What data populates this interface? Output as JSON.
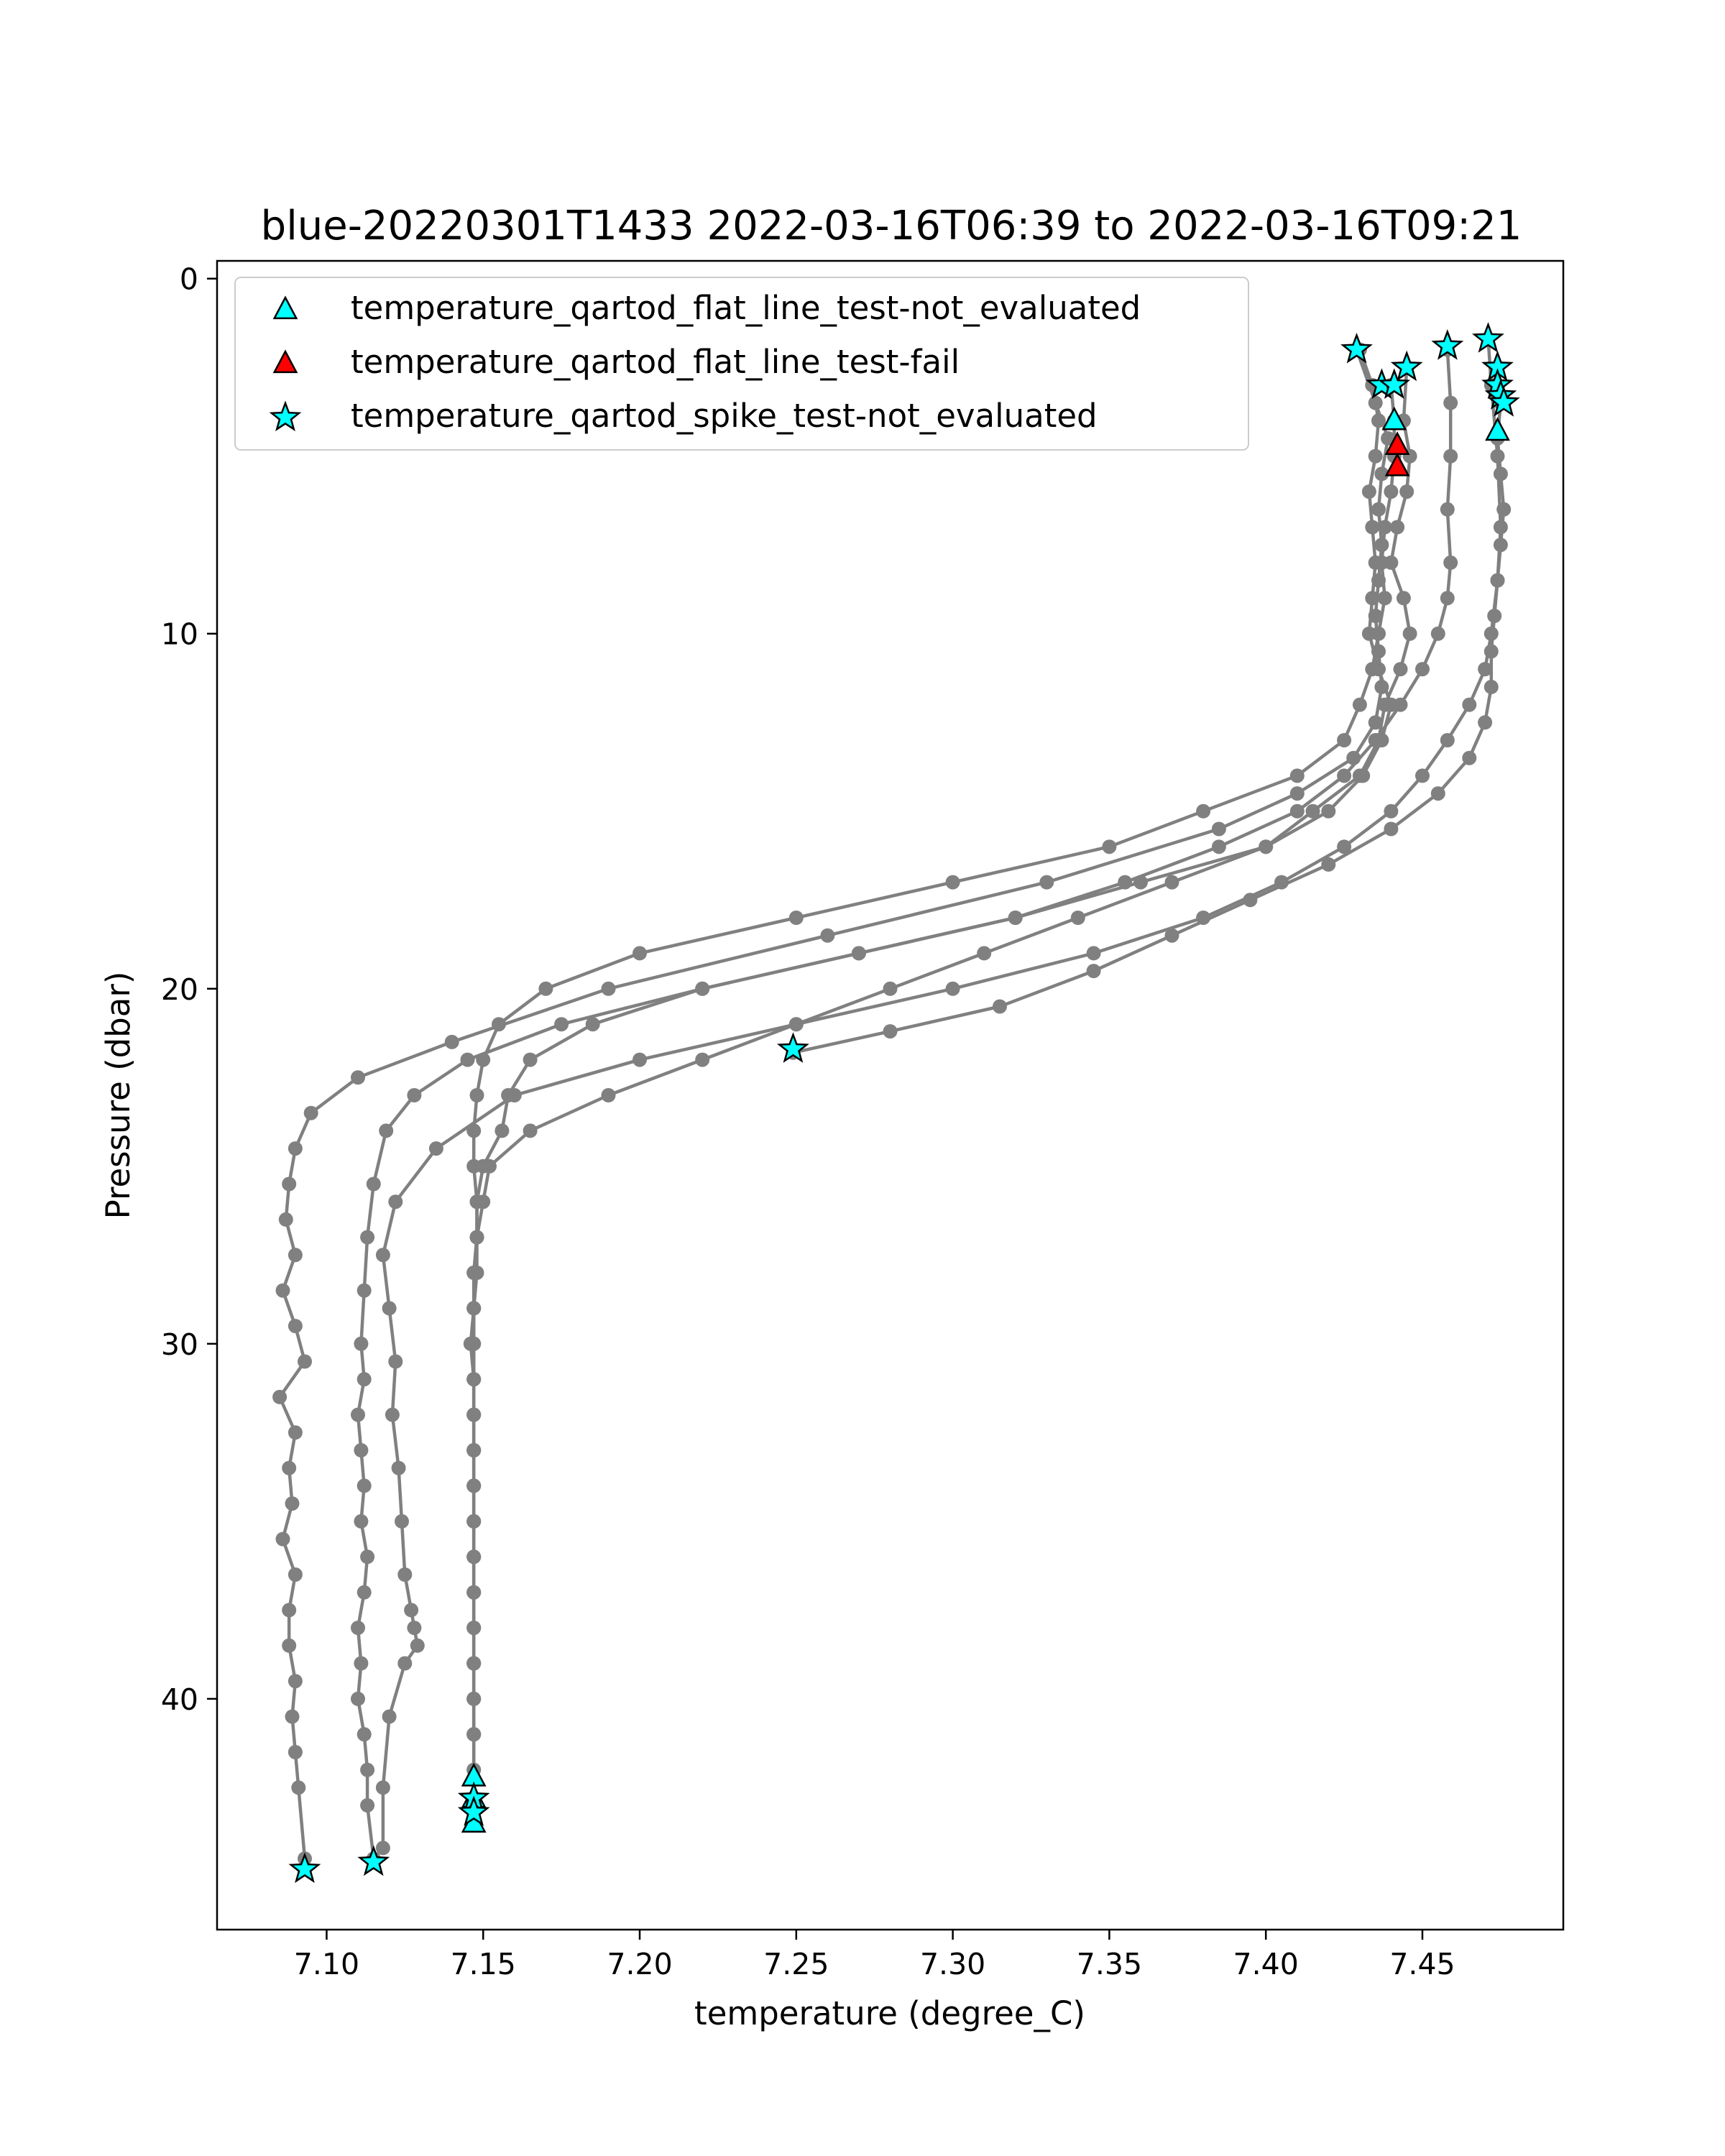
{
  "chart_data": {
    "type": "scatter",
    "title": "blue-20220301T1433 2022-03-16T06:39 to 2022-03-16T09:21",
    "xlabel": "temperature (degree_C)",
    "ylabel": "Pressure (dbar)",
    "xlim": [
      7.065,
      7.495
    ],
    "ylim": [
      46.5,
      -0.5
    ],
    "y_inverted": true,
    "xticks": [
      7.1,
      7.15,
      7.2,
      7.25,
      7.3,
      7.35,
      7.4,
      7.45
    ],
    "xtick_labels": [
      "7.10",
      "7.15",
      "7.20",
      "7.25",
      "7.30",
      "7.35",
      "7.40",
      "7.45"
    ],
    "yticks": [
      0,
      10,
      20,
      30,
      40
    ],
    "ytick_labels": [
      "0",
      "10",
      "20",
      "30",
      "40"
    ],
    "grid": false,
    "legend_position": "upper-left",
    "profile_color": "#808080",
    "profiles": [
      {
        "x": [
          7.43,
          7.434,
          7.436,
          7.435,
          7.433,
          7.434,
          7.435,
          7.434,
          7.433,
          7.436,
          7.44,
          7.437,
          7.431,
          7.42,
          7.4,
          7.37,
          7.34,
          7.31,
          7.28,
          7.25,
          7.22,
          7.19,
          7.165,
          7.152,
          7.15,
          7.148,
          7.147,
          7.147,
          7.146,
          7.147,
          7.147,
          7.147,
          7.147,
          7.147,
          7.147,
          7.147,
          7.147,
          7.147,
          7.147,
          7.147
        ],
        "y": [
          2.0,
          3.0,
          4.0,
          5.0,
          6.0,
          7.0,
          8.0,
          9.0,
          10.0,
          11.0,
          12.0,
          13.0,
          14.0,
          15.0,
          16.0,
          17.0,
          18.0,
          19.0,
          20.0,
          21.0,
          22.0,
          23.0,
          24.0,
          25.0,
          26.0,
          27.0,
          28.0,
          29.0,
          30.0,
          31.0,
          32.0,
          33.0,
          34.0,
          35.0,
          36.0,
          37.0,
          38.0,
          39.0,
          40.0,
          41.0
        ]
      },
      {
        "x": [
          7.44,
          7.441,
          7.441,
          7.44,
          7.438,
          7.437,
          7.438,
          7.436,
          7.434,
          7.43,
          7.425,
          7.41,
          7.38,
          7.35,
          7.3,
          7.25,
          7.2,
          7.17,
          7.155,
          7.15,
          7.148,
          7.147,
          7.147,
          7.148,
          7.148,
          7.148,
          7.147,
          7.147,
          7.147,
          7.147,
          7.147,
          7.147,
          7.147,
          7.147,
          7.147,
          7.147,
          7.147,
          7.147,
          7.147,
          7.147,
          7.147
        ],
        "y": [
          3.0,
          4.0,
          5.0,
          6.0,
          7.0,
          8.0,
          9.0,
          10.0,
          11.0,
          12.0,
          13.0,
          14.0,
          15.0,
          16.0,
          17.0,
          18.0,
          19.0,
          20.0,
          21.0,
          22.0,
          23.0,
          24.0,
          25.0,
          26.0,
          27.0,
          28.0,
          29.0,
          30.0,
          31.0,
          32.0,
          33.0,
          34.0,
          35.0,
          36.0,
          37.0,
          38.0,
          39.0,
          40.0,
          41.0,
          42.0,
          43.0
        ]
      },
      {
        "x": [
          7.445,
          7.444,
          7.446,
          7.445,
          7.442,
          7.44,
          7.444,
          7.446,
          7.443,
          7.438,
          7.436,
          7.43,
          7.415,
          7.4,
          7.36,
          7.32,
          7.27,
          7.22,
          7.185,
          7.165,
          7.158,
          7.156,
          7.15,
          7.148,
          7.148,
          7.147,
          7.147,
          7.147,
          7.147,
          7.147,
          7.147,
          7.147,
          7.147,
          7.147,
          7.147,
          7.147,
          7.147,
          7.147,
          7.147,
          7.147,
          7.147,
          7.147,
          7.147
        ],
        "y": [
          2.5,
          4.0,
          5.0,
          6.0,
          7.0,
          8.0,
          9.0,
          10.0,
          11.0,
          12.0,
          13.0,
          14.0,
          15.0,
          16.0,
          17.0,
          18.0,
          19.0,
          20.0,
          21.0,
          22.0,
          23.0,
          24.0,
          25.0,
          26.0,
          27.0,
          28.0,
          29.0,
          30.0,
          31.0,
          32.0,
          33.0,
          34.0,
          35.0,
          36.0,
          37.0,
          38.0,
          39.0,
          40.0,
          41.0,
          42.0,
          43.0,
          43.5,
          43.5
        ]
      },
      {
        "x": [
          7.429,
          7.435,
          7.439,
          7.437,
          7.436,
          7.437,
          7.436,
          7.435,
          7.436,
          7.437,
          7.435,
          7.428,
          7.41,
          7.385,
          7.33,
          7.26,
          7.19,
          7.14,
          7.11,
          7.095,
          7.09,
          7.088,
          7.087,
          7.09,
          7.086,
          7.09,
          7.093,
          7.085,
          7.09,
          7.088,
          7.089,
          7.086,
          7.09,
          7.088,
          7.088,
          7.09,
          7.089,
          7.09,
          7.091,
          7.093
        ],
        "y": [
          2.0,
          3.5,
          4.5,
          5.5,
          6.5,
          7.5,
          8.5,
          9.5,
          10.5,
          11.5,
          12.5,
          13.5,
          14.5,
          15.5,
          17.0,
          18.5,
          20.0,
          21.5,
          22.5,
          23.5,
          24.5,
          25.5,
          26.5,
          27.5,
          28.5,
          29.5,
          30.5,
          31.5,
          32.5,
          33.5,
          34.5,
          35.5,
          36.5,
          37.5,
          38.5,
          39.5,
          40.5,
          41.5,
          42.5,
          44.5
        ]
      },
      {
        "x": [
          7.458,
          7.459,
          7.459,
          7.458,
          7.459,
          7.458,
          7.455,
          7.45,
          7.443,
          7.435,
          7.425,
          7.41,
          7.385,
          7.355,
          7.32,
          7.27,
          7.22,
          7.175,
          7.145,
          7.128,
          7.119,
          7.115,
          7.113,
          7.112,
          7.111,
          7.112,
          7.11,
          7.111,
          7.112,
          7.111,
          7.113,
          7.112,
          7.11,
          7.111,
          7.11,
          7.112,
          7.113,
          7.113,
          7.115
        ],
        "y": [
          2.0,
          3.5,
          5.0,
          6.5,
          8.0,
          9.0,
          10.0,
          11.0,
          12.0,
          13.0,
          14.0,
          15.0,
          16.0,
          17.0,
          18.0,
          19.0,
          20.0,
          21.0,
          22.0,
          23.0,
          24.0,
          25.5,
          27.0,
          28.5,
          30.0,
          31.0,
          32.0,
          33.0,
          34.0,
          35.0,
          36.0,
          37.0,
          38.0,
          39.0,
          40.0,
          41.0,
          42.0,
          43.0,
          44.5
        ]
      },
      {
        "x": [
          7.471,
          7.472,
          7.474,
          7.475,
          7.474,
          7.472,
          7.47,
          7.465,
          7.458,
          7.45,
          7.44,
          7.425,
          7.405,
          7.38,
          7.345,
          7.3,
          7.25,
          7.2,
          7.16,
          7.135,
          7.122,
          7.118,
          7.12,
          7.122,
          7.121,
          7.123,
          7.124,
          7.125,
          7.127,
          7.128,
          7.129,
          7.125,
          7.12,
          7.118,
          7.118
        ],
        "y": [
          1.7,
          3.0,
          5.0,
          7.0,
          8.5,
          10.0,
          11.0,
          12.0,
          13.0,
          14.0,
          15.0,
          16.0,
          17.0,
          18.0,
          19.0,
          20.0,
          21.0,
          22.0,
          23.0,
          24.5,
          26.0,
          27.5,
          29.0,
          30.5,
          32.0,
          33.5,
          35.0,
          36.5,
          37.5,
          38.0,
          38.5,
          39.0,
          40.5,
          42.5,
          44.2
        ]
      },
      {
        "x": [
          7.474,
          7.475,
          7.474,
          7.475,
          7.476,
          7.475,
          7.474,
          7.473,
          7.472,
          7.472,
          7.47,
          7.465,
          7.455,
          7.44,
          7.42,
          7.395,
          7.37,
          7.345,
          7.315,
          7.28,
          7.249
        ],
        "y": [
          2.5,
          3.5,
          4.5,
          5.5,
          6.5,
          7.5,
          8.5,
          9.5,
          10.5,
          11.5,
          12.5,
          13.5,
          14.5,
          15.5,
          16.5,
          17.5,
          18.5,
          19.5,
          20.5,
          21.2,
          21.8
        ]
      }
    ],
    "series": [
      {
        "name": "temperature_qartod_flat_line_test-not_evaluated",
        "marker": "triangle",
        "color": "#00ffff",
        "x": [
          7.441,
          7.474,
          7.147,
          7.147,
          7.147
        ],
        "y": [
          4.0,
          4.3,
          42.2,
          42.8,
          43.5
        ]
      },
      {
        "name": "temperature_qartod_flat_line_test-fail",
        "marker": "triangle",
        "color": "#ff0000",
        "x": [
          7.442,
          7.442
        ],
        "y": [
          4.7,
          5.3
        ]
      },
      {
        "name": "temperature_qartod_spike_test-not_evaluated",
        "marker": "star",
        "color": "#00ffff",
        "x": [
          7.429,
          7.437,
          7.441,
          7.445,
          7.458,
          7.471,
          7.474,
          7.474,
          7.475,
          7.476,
          7.249,
          7.147,
          7.147,
          7.093,
          7.115
        ],
        "y": [
          2.0,
          3.0,
          3.0,
          2.5,
          1.9,
          1.7,
          2.5,
          3.0,
          3.3,
          3.5,
          21.7,
          42.8,
          43.2,
          44.8,
          44.6
        ]
      }
    ]
  }
}
